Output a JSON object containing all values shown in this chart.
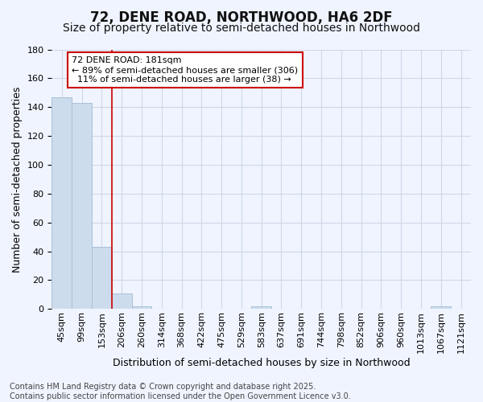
{
  "title": "72, DENE ROAD, NORTHWOOD, HA6 2DF",
  "subtitle": "Size of property relative to semi-detached houses in Northwood",
  "xlabel": "Distribution of semi-detached houses by size in Northwood",
  "ylabel": "Number of semi-detached properties",
  "bin_labels": [
    "45sqm",
    "99sqm",
    "153sqm",
    "206sqm",
    "260sqm",
    "314sqm",
    "368sqm",
    "422sqm",
    "475sqm",
    "529sqm",
    "583sqm",
    "637sqm",
    "691sqm",
    "744sqm",
    "798sqm",
    "852sqm",
    "906sqm",
    "960sqm",
    "1013sqm",
    "1067sqm",
    "1121sqm"
  ],
  "bar_heights": [
    147,
    143,
    43,
    11,
    2,
    0,
    0,
    0,
    0,
    0,
    2,
    0,
    0,
    0,
    0,
    0,
    0,
    0,
    0,
    2,
    0
  ],
  "bar_color": "#ccdcec",
  "bar_edge_color": "#aac0d8",
  "grid_color": "#ccd8e8",
  "vline_color": "#cc0000",
  "vline_x": 2.5,
  "annotation_line1": "72 DENE ROAD: 181sqm",
  "annotation_line2": "← 89% of semi-detached houses are smaller (306)",
  "annotation_line3": "  11% of semi-detached houses are larger (38) →",
  "annotation_box_color": "#ffffff",
  "annotation_box_edge_color": "#cc0000",
  "ylim": [
    0,
    180
  ],
  "yticks": [
    0,
    20,
    40,
    60,
    80,
    100,
    120,
    140,
    160,
    180
  ],
  "footer_text": "Contains HM Land Registry data © Crown copyright and database right 2025.\nContains public sector information licensed under the Open Government Licence v3.0.",
  "bg_color": "#f0f4ff",
  "title_fontsize": 12,
  "subtitle_fontsize": 10,
  "ylabel_fontsize": 9,
  "xlabel_fontsize": 9,
  "tick_fontsize": 8,
  "footer_fontsize": 7
}
